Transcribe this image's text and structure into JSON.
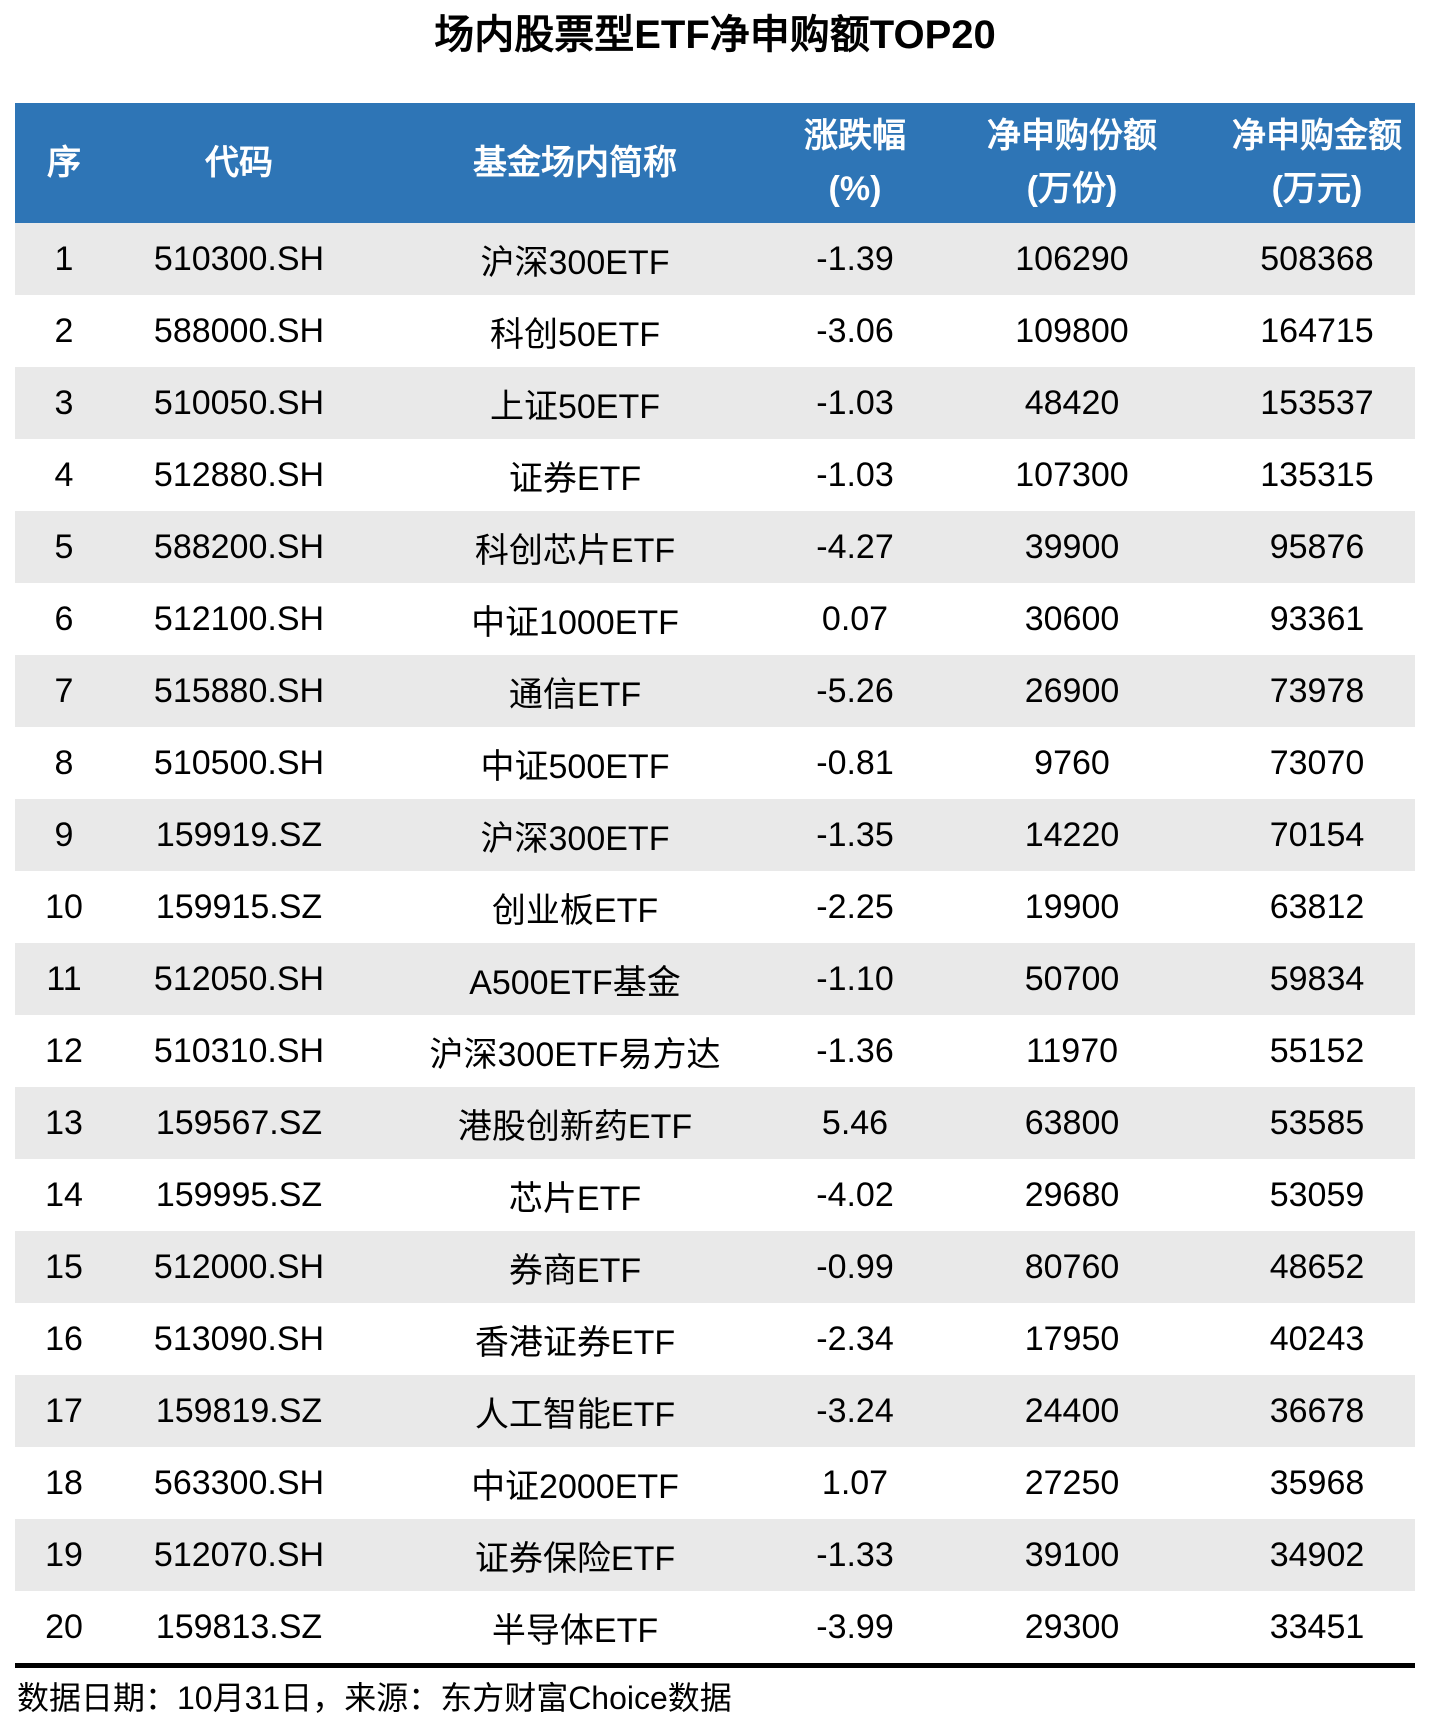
{
  "chart_data": {
    "type": "table",
    "title": "场内股票型ETF净申购额TOP20",
    "columns": [
      {
        "name": "rank",
        "line1": "序",
        "line2": ""
      },
      {
        "name": "code",
        "line1": "代码",
        "line2": ""
      },
      {
        "name": "name",
        "line1": "基金场内简称",
        "line2": ""
      },
      {
        "name": "change",
        "line1": "涨跌幅",
        "line2": "(%)"
      },
      {
        "name": "shares",
        "line1": "净申购份额",
        "line2": "(万份)"
      },
      {
        "name": "amount",
        "line1": "净申购金额",
        "line2": "(万元)"
      }
    ],
    "rows": [
      [
        "1",
        "510300.SH",
        "沪深300ETF",
        "-1.39",
        "106290",
        "508368"
      ],
      [
        "2",
        "588000.SH",
        "科创50ETF",
        "-3.06",
        "109800",
        "164715"
      ],
      [
        "3",
        "510050.SH",
        "上证50ETF",
        "-1.03",
        "48420",
        "153537"
      ],
      [
        "4",
        "512880.SH",
        "证券ETF",
        "-1.03",
        "107300",
        "135315"
      ],
      [
        "5",
        "588200.SH",
        "科创芯片ETF",
        "-4.27",
        "39900",
        "95876"
      ],
      [
        "6",
        "512100.SH",
        "中证1000ETF",
        "0.07",
        "30600",
        "93361"
      ],
      [
        "7",
        "515880.SH",
        "通信ETF",
        "-5.26",
        "26900",
        "73978"
      ],
      [
        "8",
        "510500.SH",
        "中证500ETF",
        "-0.81",
        "9760",
        "73070"
      ],
      [
        "9",
        "159919.SZ",
        "沪深300ETF",
        "-1.35",
        "14220",
        "70154"
      ],
      [
        "10",
        "159915.SZ",
        "创业板ETF",
        "-2.25",
        "19900",
        "63812"
      ],
      [
        "11",
        "512050.SH",
        "A500ETF基金",
        "-1.10",
        "50700",
        "59834"
      ],
      [
        "12",
        "510310.SH",
        "沪深300ETF易方达",
        "-1.36",
        "11970",
        "55152"
      ],
      [
        "13",
        "159567.SZ",
        "港股创新药ETF",
        "5.46",
        "63800",
        "53585"
      ],
      [
        "14",
        "159995.SZ",
        "芯片ETF",
        "-4.02",
        "29680",
        "53059"
      ],
      [
        "15",
        "512000.SH",
        "券商ETF",
        "-0.99",
        "80760",
        "48652"
      ],
      [
        "16",
        "513090.SH",
        "香港证券ETF",
        "-2.34",
        "17950",
        "40243"
      ],
      [
        "17",
        "159819.SZ",
        "人工智能ETF",
        "-3.24",
        "24400",
        "36678"
      ],
      [
        "18",
        "563300.SH",
        "中证2000ETF",
        "1.07",
        "27250",
        "35968"
      ],
      [
        "19",
        "512070.SH",
        "证券保险ETF",
        "-1.33",
        "39100",
        "34902"
      ],
      [
        "20",
        "159813.SZ",
        "半导体ETF",
        "-3.99",
        "29300",
        "33451"
      ]
    ],
    "footnote": "数据日期：10月31日，来源：东方财富Choice数据"
  },
  "colors": {
    "header_bg": "#2E75B6",
    "header_text": "#FFFFFF",
    "row_alt_bg": "#E9E9E9",
    "divider": "#000000",
    "body_text": "#000000"
  }
}
